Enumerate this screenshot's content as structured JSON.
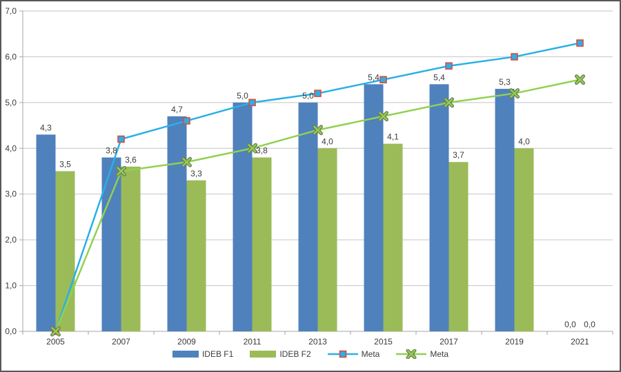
{
  "chart_data": {
    "type": "bar+line",
    "title": "",
    "categories": [
      "2005",
      "2007",
      "2009",
      "2011",
      "2013",
      "2015",
      "2017",
      "2019",
      "2021"
    ],
    "series": [
      {
        "name": "IDEB F1",
        "type": "bar",
        "color": "#4f81bd",
        "values": [
          4.3,
          3.8,
          4.7,
          5.0,
          5.0,
          5.4,
          5.4,
          5.3,
          0.0
        ],
        "data_labels": [
          "4,3",
          "3,8",
          "4,7",
          "5,0",
          "5,0",
          "5,4",
          "5,4",
          "5,3",
          "0,0"
        ]
      },
      {
        "name": "IDEB F2",
        "type": "bar",
        "color": "#9bbb59",
        "values": [
          3.5,
          3.6,
          3.3,
          3.8,
          4.0,
          4.1,
          3.7,
          4.0,
          0.0
        ],
        "data_labels": [
          "3,5",
          "3,6",
          "3,3",
          "3,8",
          "4,0",
          "4,1",
          "3,7",
          "4,0",
          "0,0"
        ]
      },
      {
        "name": "Meta",
        "type": "line",
        "marker": "square",
        "color": "#29b0e6",
        "marker_fill": "#29b0e6",
        "marker_border": "#e0493e",
        "values": [
          0.0,
          4.2,
          4.6,
          5.0,
          5.2,
          5.5,
          5.8,
          6.0,
          6.3
        ]
      },
      {
        "name": "Meta",
        "type": "line",
        "marker": "x",
        "color": "#92d050",
        "marker_fill": "#92d050",
        "marker_border": "#6e7b52",
        "values": [
          0.0,
          3.5,
          3.7,
          4.0,
          4.4,
          4.7,
          5.0,
          5.2,
          5.5
        ]
      }
    ],
    "ylim": [
      0,
      7
    ],
    "ytick_labels": [
      "0,0",
      "1,0",
      "2,0",
      "3,0",
      "4,0",
      "5,0",
      "6,0",
      "7,0"
    ],
    "xlabel": "",
    "ylabel": "",
    "grid": true,
    "legend_position": "bottom",
    "colors": {
      "grid": "#c4c4c4",
      "axis": "#a6a6a6",
      "text": "#3a3a3a",
      "frame_border": "#585858"
    }
  },
  "legend": {
    "items": [
      {
        "label": "IDEB F1"
      },
      {
        "label": "IDEB F2"
      },
      {
        "label": "Meta"
      },
      {
        "label": "Meta"
      }
    ]
  }
}
